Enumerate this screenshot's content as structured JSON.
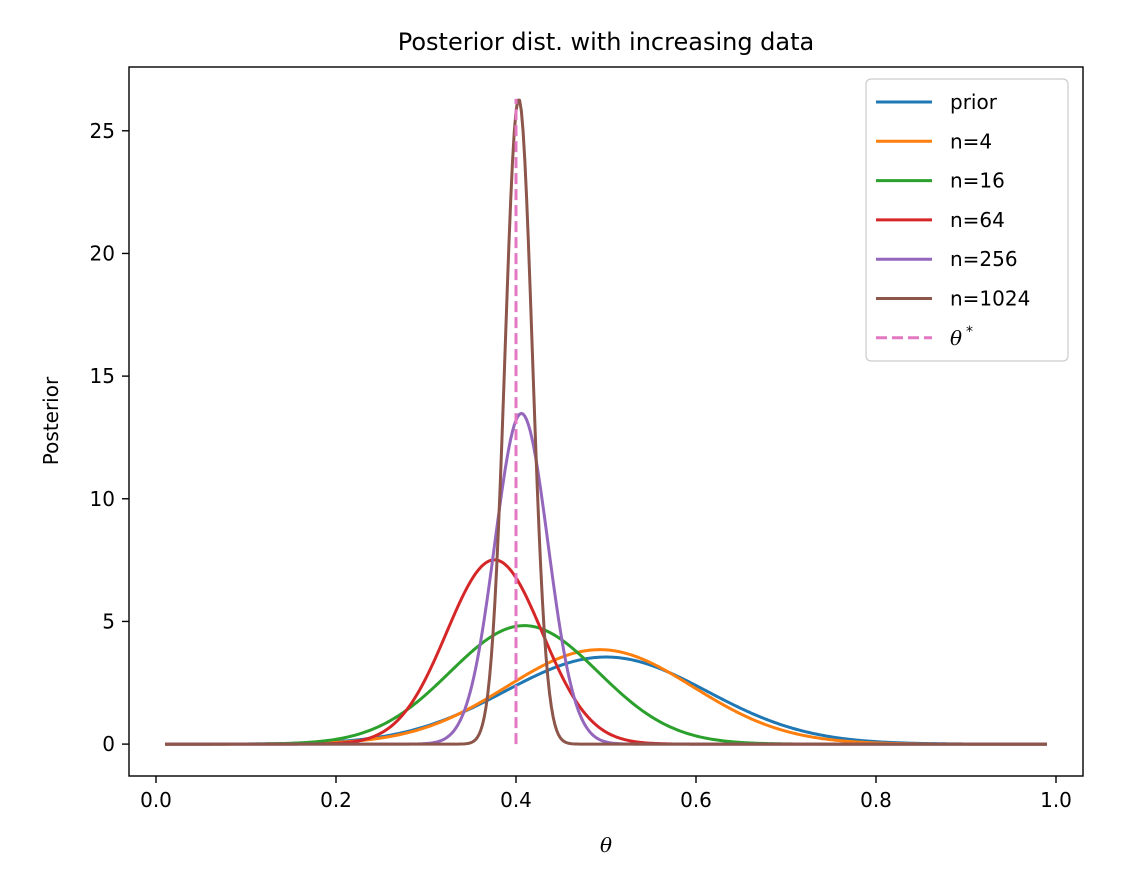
{
  "chart_data": {
    "type": "line",
    "title": "Posterior dist. with increasing data",
    "xlabel": "θ",
    "ylabel": "Posterior",
    "xlim": [
      -0.03,
      1.03
    ],
    "ylim": [
      -1.3,
      27.6
    ],
    "x_ticks": [
      0.0,
      0.2,
      0.4,
      0.6,
      0.8,
      1.0
    ],
    "x_tick_labels": [
      "0.0",
      "0.2",
      "0.4",
      "0.6",
      "0.8",
      "1.0"
    ],
    "y_ticks": [
      0,
      5,
      10,
      15,
      20,
      25
    ],
    "y_tick_labels": [
      "0",
      "5",
      "10",
      "15",
      "20",
      "25"
    ],
    "grid": false,
    "legend_position": "top-right",
    "x_range": [
      0.01,
      0.99
    ],
    "series": [
      {
        "name": "prior",
        "color": "#1f77b4",
        "distribution": "normal",
        "mean": 0.5,
        "sd": 0.1123,
        "peak": 3.55
      },
      {
        "name": "n=4",
        "color": "#ff7f0e",
        "distribution": "normal",
        "mean": 0.493,
        "sd": 0.1037,
        "peak": 3.85
      },
      {
        "name": "n=16",
        "color": "#2ca02c",
        "distribution": "normal",
        "mean": 0.409,
        "sd": 0.0826,
        "peak": 4.83
      },
      {
        "name": "n=64",
        "color": "#d62728",
        "distribution": "normal",
        "mean": 0.376,
        "sd": 0.0531,
        "peak": 7.51
      },
      {
        "name": "n=256",
        "color": "#9467bd",
        "distribution": "normal",
        "mean": 0.406,
        "sd": 0.0296,
        "peak": 13.48
      },
      {
        "name": "n=1024",
        "color": "#8c564b",
        "distribution": "normal",
        "mean": 0.403,
        "sd": 0.0152,
        "peak": 26.3
      }
    ],
    "true_value": {
      "name": "θ*",
      "base": "θ",
      "sup": "*",
      "color": "#e377c2",
      "x": 0.4,
      "y_range": [
        0,
        26.3
      ],
      "style": "dashed"
    }
  }
}
